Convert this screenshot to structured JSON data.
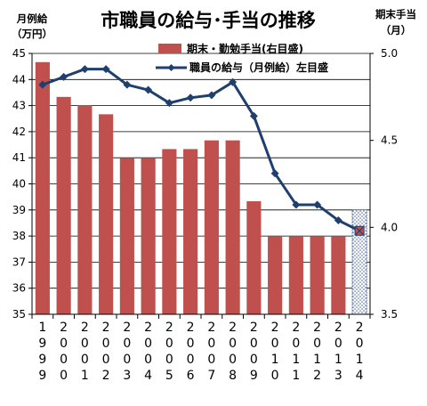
{
  "chart_data": {
    "type": "bar+line",
    "title": "市職員の給与･手当の推移",
    "y_left_label_line1": "月例給",
    "y_left_label_line2": "（万円）",
    "y_right_label_line1": "期末手当",
    "y_right_label_line2": "（月）",
    "categories": [
      "1999",
      "2000",
      "2001",
      "2002",
      "2003",
      "2004",
      "2005",
      "2006",
      "2007",
      "2008",
      "2009",
      "2010",
      "2011",
      "2012",
      "2013",
      "2014"
    ],
    "ylim_left": [
      35,
      45
    ],
    "ylim_right": [
      3.5,
      5.0
    ],
    "yticks_left": [
      "35",
      "36",
      "37",
      "38",
      "39",
      "40",
      "41",
      "42",
      "43",
      "44",
      "45"
    ],
    "yticks_right": [
      "3.5",
      "4.0",
      "4.5",
      "5.0"
    ],
    "grid": "horizontal",
    "legend_position": "top-right",
    "series": [
      {
        "name": "期末・勤勉手当(右目盛)",
        "type": "bar",
        "axis": "right",
        "color": "#C0504D",
        "values": [
          4.95,
          4.75,
          4.7,
          4.65,
          4.4,
          4.4,
          4.45,
          4.45,
          4.5,
          4.5,
          4.15,
          3.95,
          3.95,
          3.95,
          3.95,
          4.1
        ],
        "last_pattern": "dotted"
      },
      {
        "name": "職員の給与（月例給）左目盛",
        "type": "line",
        "axis": "left",
        "color": "#1F3F6E",
        "values": [
          43.8,
          44.1,
          44.4,
          44.4,
          43.8,
          43.6,
          43.1,
          43.3,
          43.4,
          43.9,
          42.6,
          40.4,
          39.2,
          39.2,
          38.6,
          38.2
        ]
      }
    ]
  }
}
